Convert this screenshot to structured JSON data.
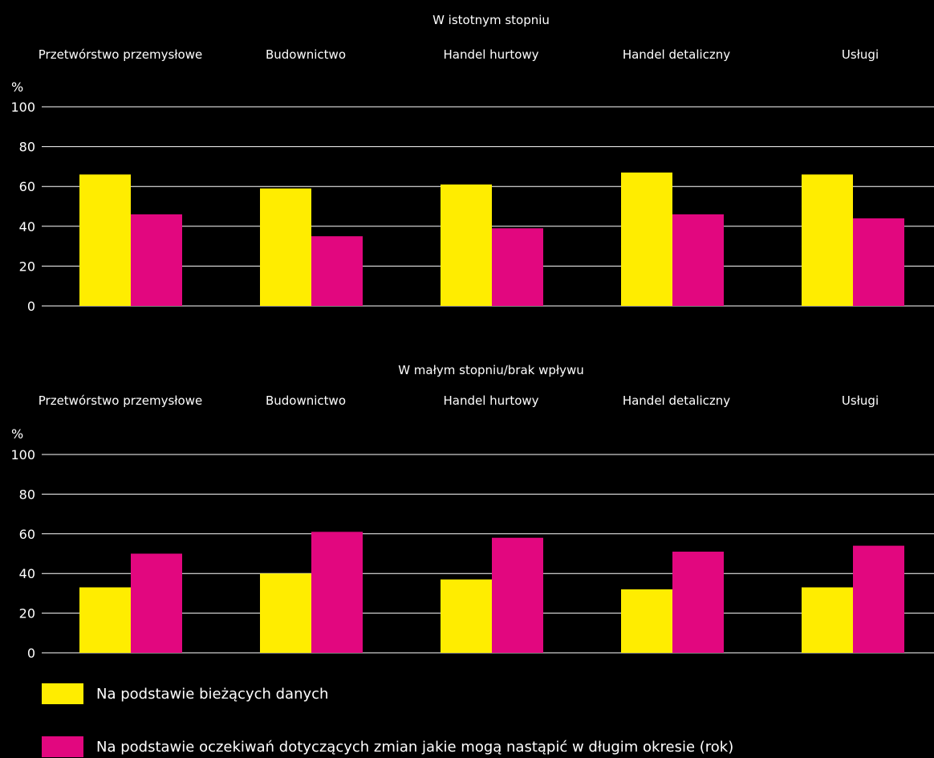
{
  "chart_data": [
    {
      "type": "bar",
      "title": "W istotnym stopniu",
      "ylabel": "%",
      "ylim": [
        0,
        100
      ],
      "yticks": [
        0,
        20,
        40,
        60,
        80,
        100
      ],
      "grid": true,
      "categories": [
        "Przetwórstwo przemysłowe",
        "Budownictwo",
        "Handel hurtowy",
        "Handel detaliczny",
        "Usługi"
      ],
      "series": [
        {
          "name": "Na podstawie bieżących danych",
          "color": "#ffed00",
          "values": [
            66,
            59,
            61,
            67,
            66
          ]
        },
        {
          "name": "Na podstawie oczekiwań dotyczących zmian jakie mogą nastąpić w długim okresie (rok)",
          "color": "#e2077f",
          "values": [
            46,
            35,
            39,
            46,
            44
          ]
        }
      ]
    },
    {
      "type": "bar",
      "title": "W małym stopniu/brak wpływu",
      "ylabel": "%",
      "ylim": [
        0,
        100
      ],
      "yticks": [
        0,
        20,
        40,
        60,
        80,
        100
      ],
      "grid": true,
      "categories": [
        "Przetwórstwo przemysłowe",
        "Budownictwo",
        "Handel hurtowy",
        "Handel detaliczny",
        "Usługi"
      ],
      "series": [
        {
          "name": "Na podstawie bieżących danych",
          "color": "#ffed00",
          "values": [
            33,
            40,
            37,
            32,
            33
          ]
        },
        {
          "name": "Na podstawie oczekiwań dotyczących zmian jakie mogą nastąpić w długim okresie (rok)",
          "color": "#e2077f",
          "values": [
            50,
            61,
            58,
            51,
            54
          ]
        }
      ]
    }
  ],
  "legend": [
    {
      "label": "Na podstawie bieżących danych",
      "color": "#ffed00"
    },
    {
      "label": "Na podstawie oczekiwań dotyczących zmian jakie mogą nastąpić w długim okresie (rok)",
      "color": "#e2077f"
    }
  ]
}
